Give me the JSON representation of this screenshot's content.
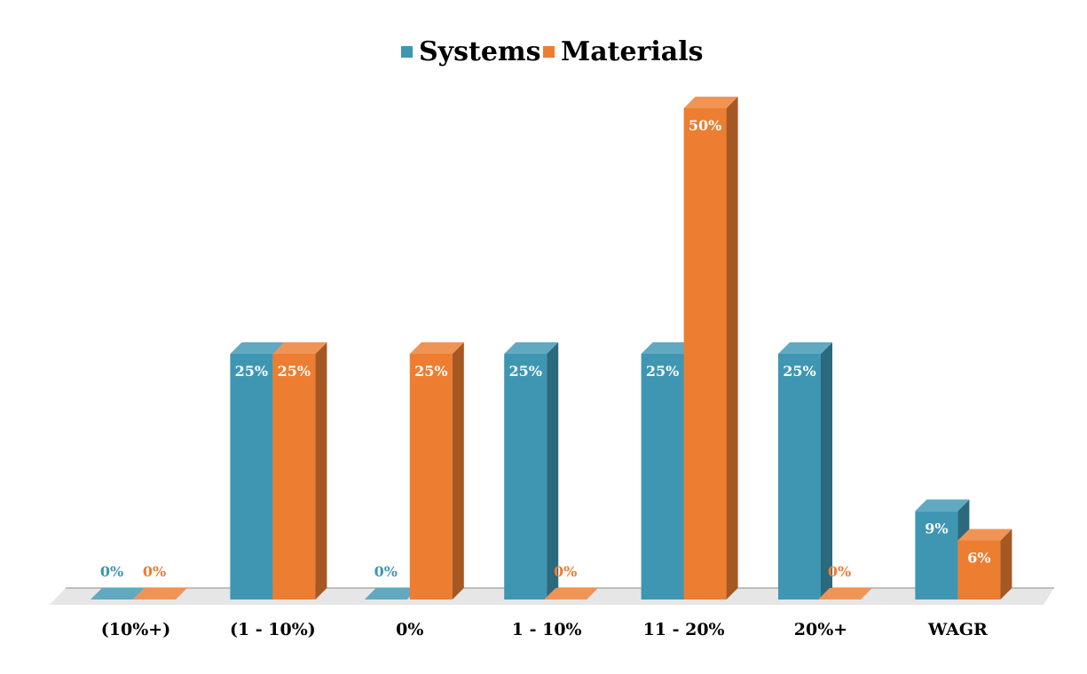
{
  "chart_data": {
    "type": "bar",
    "title": "",
    "xlabel": "",
    "ylabel": "",
    "ylim": [
      0,
      0.5
    ],
    "legend_position": "top-center",
    "categories": [
      "(10%+)",
      "(1 - 10%)",
      "0%",
      "1 - 10%",
      "11 - 20%",
      "20%+",
      "WAGR"
    ],
    "series": [
      {
        "name": "Systems",
        "color": "#3E96B3",
        "values": [
          0,
          0.25,
          0,
          0.25,
          0.25,
          0.25,
          0.09
        ],
        "labels": [
          "0%",
          "25%",
          "0%",
          "25%",
          "25%",
          "25%",
          "9%"
        ]
      },
      {
        "name": "Materials",
        "color": "#ED7D31",
        "values": [
          0,
          0.25,
          0.25,
          0,
          0.5,
          0,
          0.06
        ],
        "labels": [
          "0%",
          "25%",
          "25%",
          "0%",
          "50%",
          "0%",
          "6%"
        ]
      }
    ]
  }
}
